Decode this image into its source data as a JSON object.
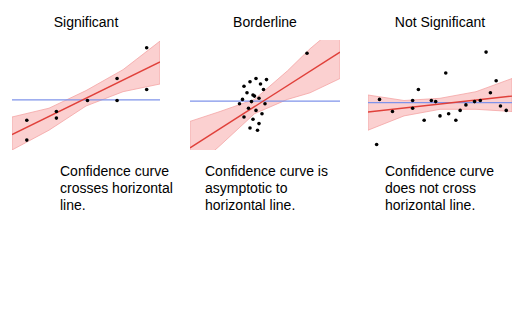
{
  "chart_data": [
    {
      "type": "scatter",
      "title": "Significant",
      "caption": "Confidence curve crosses horizontal line.",
      "xlim": [
        0,
        10
      ],
      "ylim": [
        0,
        10
      ],
      "tick_labels": false,
      "color": "#000000",
      "x": [
        1.0,
        1.0,
        3.0,
        3.0,
        5.1,
        7.1,
        7.1,
        9.1,
        9.1
      ],
      "values": [
        2.7,
        0.9,
        3.5,
        2.9,
        4.5,
        6.5,
        4.5,
        9.3,
        5.5
      ],
      "fit": {
        "x": [
          0,
          10
        ],
        "values": [
          1.4,
          8.0
        ]
      },
      "band": {
        "x": [
          0,
          2.5,
          5,
          7.5,
          10
        ],
        "lower": [
          0,
          1.8,
          4.0,
          5.3,
          6.0
        ],
        "upper": [
          3.0,
          3.8,
          5.4,
          7.3,
          9.9
        ]
      },
      "reference_line": 4.55
    },
    {
      "type": "scatter",
      "title": "Borderline",
      "caption": "Confidence curve is asymptotic to horizontal line.",
      "xlim": [
        0,
        10
      ],
      "ylim": [
        0,
        10
      ],
      "tick_labels": false,
      "color": "#000000",
      "x": [
        3.6,
        4.0,
        4.4,
        4.7,
        3.8,
        4.2,
        4.9,
        3.5,
        4.1,
        4.6,
        5.0,
        3.9,
        4.4,
        4.8,
        3.6,
        4.2,
        4.6,
        4.0,
        4.5,
        3.3,
        5.1,
        4.3,
        7.8
      ],
      "values": [
        5.8,
        6.2,
        6.5,
        6.0,
        5.2,
        5.0,
        5.5,
        4.6,
        4.4,
        4.7,
        4.2,
        3.8,
        3.6,
        3.3,
        3.0,
        2.8,
        2.4,
        2.0,
        1.8,
        4.2,
        6.4,
        4.9,
        8.8
      ],
      "fit": {
        "x": [
          0,
          10
        ],
        "values": [
          0.2,
          8.9
        ]
      },
      "band": {
        "x": [
          0,
          2,
          4.3,
          6.5,
          8,
          10
        ],
        "lower": [
          -2,
          0.4,
          3.3,
          4.6,
          5.2,
          6.5
        ],
        "upper": [
          2.6,
          3.5,
          4.6,
          7.2,
          9.2,
          11.5
        ]
      },
      "reference_line": 4.45
    },
    {
      "type": "scatter",
      "title": "Not Significant",
      "caption": "Confidence curve does not cross horizontal line.",
      "xlim": [
        0,
        10
      ],
      "ylim": [
        0,
        10
      ],
      "tick_labels": false,
      "color": "#000000",
      "x": [
        0.6,
        0.8,
        1.7,
        3.1,
        3.1,
        3.5,
        4.4,
        4.7,
        5.4,
        5.0,
        6.1,
        6.4,
        6.8,
        7.4,
        7.8,
        8.2,
        8.5,
        8.9,
        9.2,
        9.6,
        5.6,
        3.9
      ],
      "values": [
        0.5,
        4.6,
        3.5,
        4.5,
        3.8,
        5.5,
        4.5,
        4.4,
        7.0,
        3.1,
        2.7,
        3.6,
        4.1,
        4.4,
        4.5,
        8.9,
        5.2,
        6.3,
        4.0,
        3.6,
        3.3,
        2.7
      ],
      "fit": {
        "x": [
          0,
          10
        ],
        "values": [
          3.45,
          4.9
        ]
      },
      "band": {
        "x": [
          0,
          2.5,
          5,
          7.5,
          10
        ],
        "lower": [
          1.8,
          3.1,
          3.7,
          3.7,
          3.5
        ],
        "upper": [
          5.0,
          4.5,
          4.7,
          5.3,
          6.5
        ]
      },
      "reference_line": 4.3
    }
  ]
}
